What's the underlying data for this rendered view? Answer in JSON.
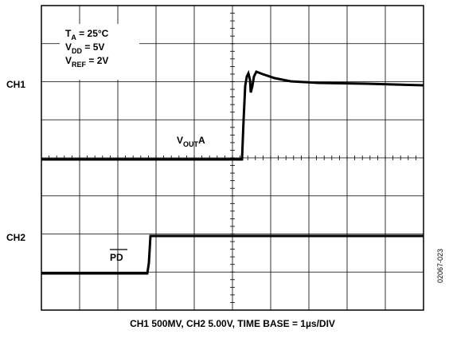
{
  "channels": {
    "ch1": "CH1",
    "ch2": "CH2"
  },
  "conditions": [
    {
      "main": "T",
      "sub": "A",
      "rest": " = 25°C"
    },
    {
      "main": "V",
      "sub": "DD",
      "rest": " = 5V"
    },
    {
      "main": "V",
      "sub": "REF",
      "rest": " = 2V"
    }
  ],
  "trace_labels": {
    "vout": {
      "main": "V",
      "sub": "OUT",
      "rest": "A"
    },
    "pd": "PD"
  },
  "caption": "CH1 500MV, CH2 5.00V, TIME BASE = 1µs/DIV",
  "figure_id": "02067-023"
}
